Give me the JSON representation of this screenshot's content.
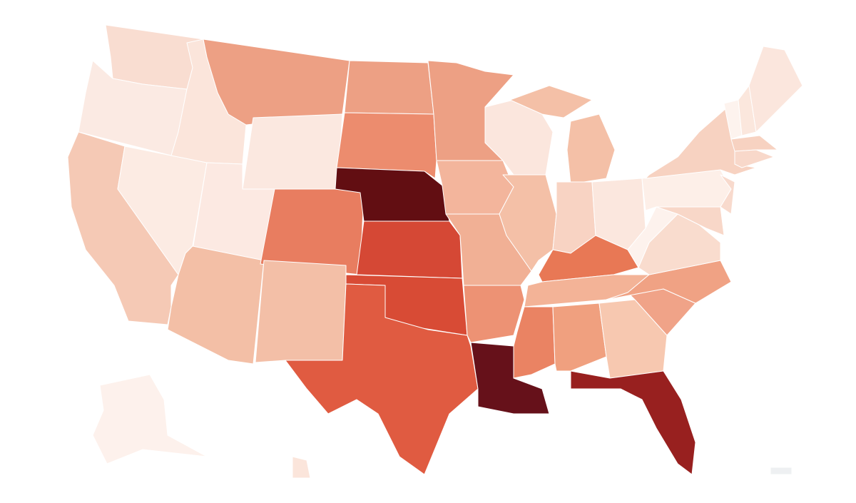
{
  "map": {
    "regions": [
      {
        "color": "#f9ddd1"
      },
      {
        "color": "#fbeae3"
      },
      {
        "color": "#f5c9b5"
      },
      {
        "color": "#fcebe3"
      },
      {
        "color": "#fbe5db"
      },
      {
        "color": "#eda084"
      },
      {
        "color": "#fbe8e0"
      },
      {
        "color": "#fce9e2"
      },
      {
        "color": "#f3bfa6"
      },
      {
        "color": "#e87d60"
      },
      {
        "color": "#f3bfa7"
      },
      {
        "color": "#eda084"
      },
      {
        "color": "#ec8c6e"
      },
      {
        "color": "#620e12"
      },
      {
        "color": "#d54835"
      },
      {
        "color": "#d84b35"
      },
      {
        "color": "#e05b41"
      },
      {
        "color": "#eda084"
      },
      {
        "color": "#f3b59c"
      },
      {
        "color": "#f1b095"
      },
      {
        "color": "#ed9274"
      },
      {
        "color": "#66111a"
      },
      {
        "color": "#fbe6dd"
      },
      {
        "color": "#f4c0a7"
      },
      {
        "color": "#f4c0a7"
      },
      {
        "color": "#f8d3c3"
      },
      {
        "color": "#fbe7de"
      },
      {
        "color": "#e87855"
      },
      {
        "color": "#f3b397"
      },
      {
        "color": "#ea8363"
      },
      {
        "color": "#f0a07f"
      },
      {
        "color": "#f7c8b0"
      },
      {
        "color": "#98201f"
      },
      {
        "color": "#f0a388"
      },
      {
        "color": "#f0a284"
      },
      {
        "color": "#f9dcce"
      },
      {
        "color": "#fdf2ed"
      },
      {
        "color": "#fdefe8"
      },
      {
        "color": "#f8d7c8"
      },
      {
        "color": "#f8dacd"
      },
      {
        "color": "#f7d2c1"
      },
      {
        "color": "#fdf3ee"
      },
      {
        "color": "#fbe7dd"
      },
      {
        "color": "#fbe6dd"
      },
      {
        "color": "#f7d2c1"
      },
      {
        "color": "#f8d8ca"
      },
      {
        "color": "#fdf1ec"
      },
      {
        "color": "#fbe5db"
      },
      {
        "color": "#eef0f2"
      }
    ]
  }
}
